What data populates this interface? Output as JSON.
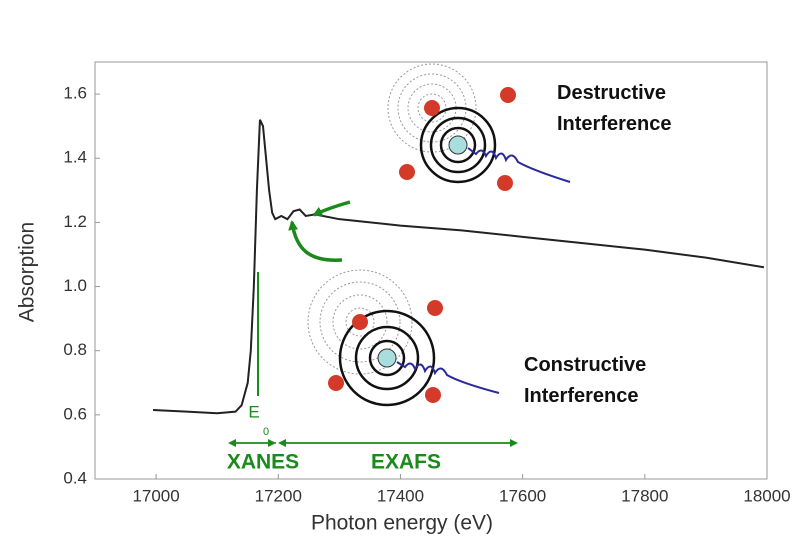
{
  "chart_data": {
    "type": "line",
    "xlabel": "Photon energy (eV)",
    "ylabel": "Absorption",
    "x": [
      16995,
      17050,
      17100,
      17130,
      17140,
      17150,
      17155,
      17160,
      17165,
      17170,
      17175,
      17180,
      17185,
      17190,
      17195,
      17205,
      17215,
      17225,
      17235,
      17245,
      17260,
      17300,
      17400,
      17500,
      17600,
      17700,
      17800,
      17900,
      17995
    ],
    "values": [
      0.615,
      0.61,
      0.605,
      0.61,
      0.63,
      0.7,
      0.8,
      1.0,
      1.3,
      1.52,
      1.5,
      1.4,
      1.3,
      1.23,
      1.21,
      1.22,
      1.21,
      1.235,
      1.24,
      1.22,
      1.225,
      1.21,
      1.19,
      1.175,
      1.155,
      1.135,
      1.115,
      1.09,
      1.06
    ],
    "color": "#222222",
    "xlim": [
      16900,
      18000
    ],
    "ylim": [
      0.4,
      1.7
    ],
    "xticks": [
      17000,
      17200,
      17400,
      17600,
      17800,
      18000
    ],
    "yticks": [
      0.4,
      0.6,
      0.8,
      {
        "value": 1,
        "label": "1.0"
      },
      1.2,
      1.4,
      1.6
    ],
    "annotations": {
      "destructive": "Destructive Interference",
      "constructive": "Constructive Interference",
      "xanes": "XANES",
      "exafs": "EXAFS",
      "edge": "E",
      "edge_sub": "0"
    }
  }
}
